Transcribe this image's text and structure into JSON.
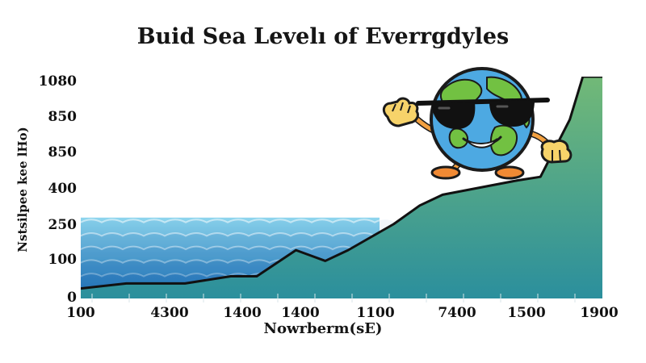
{
  "chart_data": {
    "type": "area",
    "title": "Buid Sea Levelı of Everrgdyles",
    "xlabel": "Nowrberm(sE)",
    "ylabel": "Nstsilpee kee lHo)",
    "y_tick_labels": [
      "0",
      "100",
      "250",
      "400",
      "850",
      "850",
      "1080"
    ],
    "x_tick_labels": [
      "100",
      "4300",
      "1400",
      "1400",
      "1100",
      "7400",
      "1500",
      "1900"
    ],
    "x": [
      0,
      0.7,
      1.6,
      2.3,
      2.7,
      3.3,
      3.75,
      4.1,
      4.8,
      5.2,
      5.55,
      6.7,
      7.05,
      7.5,
      7.7,
      8.0
    ],
    "values": [
      0.28,
      0.42,
      0.42,
      0.62,
      0.62,
      1.35,
      1.05,
      1.35,
      2.08,
      2.6,
      2.9,
      3.3,
      3.4,
      5.0,
      6.2,
      6.2
    ],
    "ylim": [
      0,
      6.2
    ],
    "grid": false,
    "water_level": 2.26,
    "colors": {
      "area_top": "#72b977",
      "area_bottom": "#2b8f9d",
      "line": "#111111",
      "water_light": "#8fd6ee",
      "water_dark": "#2a85c0"
    },
    "illustration": "earth-mascot-with-sunglasses"
  }
}
